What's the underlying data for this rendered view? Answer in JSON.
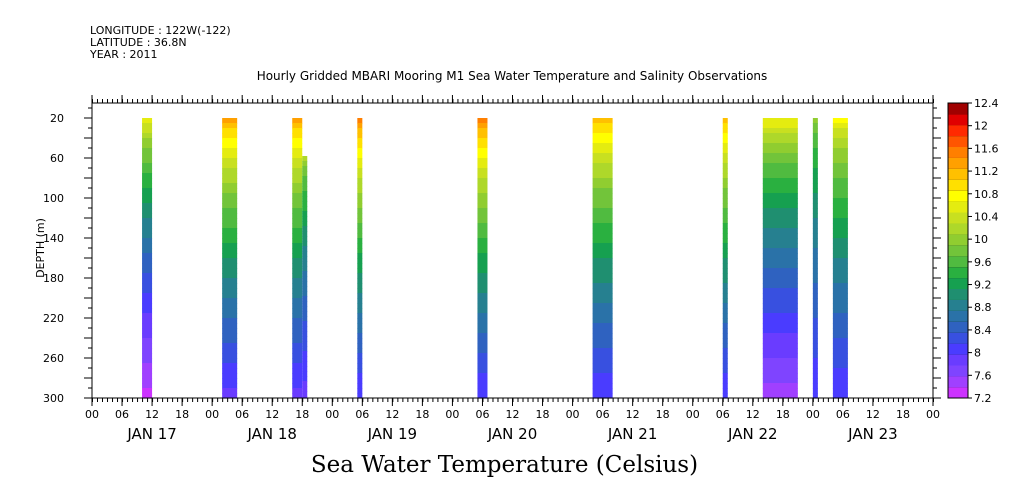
{
  "header": {
    "longitude": "LONGITUDE : 122W(-122)",
    "latitude": "LATITUDE : 36.8N",
    "year": "YEAR : 2011"
  },
  "chart_data": {
    "type": "heatmap",
    "title": "Hourly Gridded MBARI Mooring M1 Sea Water Temperature and Salinity Observations",
    "xlabel": "Sea Water Temperature (Celsius)",
    "ylabel": "DEPTH (m)",
    "ylim": [
      300,
      5
    ],
    "y_ticks": [
      "20",
      "60",
      "100",
      "140",
      "180",
      "220",
      "260",
      "300"
    ],
    "y_tick_values": [
      20,
      60,
      100,
      140,
      180,
      220,
      260,
      300
    ],
    "x_start_hour": 0,
    "x_end_hour": 168,
    "x_hour_ticks": [
      "00",
      "06",
      "12",
      "18",
      "00",
      "06",
      "12",
      "18",
      "00",
      "06",
      "12",
      "18",
      "00",
      "06",
      "12",
      "18",
      "00",
      "06",
      "12",
      "18",
      "00",
      "06",
      "12",
      "18",
      "00",
      "06",
      "12",
      "18",
      "00"
    ],
    "day_labels": [
      "JAN 17",
      "JAN 18",
      "JAN 19",
      "JAN 20",
      "JAN 21",
      "JAN 22",
      "JAN 23"
    ],
    "colorbar": {
      "levels": [
        7.2,
        7.4,
        7.6,
        7.8,
        8.0,
        8.2,
        8.4,
        8.6,
        8.8,
        9.0,
        9.2,
        9.4,
        9.6,
        9.8,
        10.0,
        10.2,
        10.4,
        10.6,
        10.8,
        11.0,
        11.2,
        11.4,
        11.6,
        11.8,
        12.0,
        12.2,
        12.4
      ],
      "labels": [
        "7.2",
        "7.6",
        "8",
        "8.4",
        "8.8",
        "9.2",
        "9.6",
        "10",
        "10.4",
        "10.8",
        "11.2",
        "11.6",
        "12",
        "12.4"
      ],
      "colors": [
        "#cc33ff",
        "#a040ff",
        "#7f44ff",
        "#6a3cff",
        "#4a3cff",
        "#3850e0",
        "#2f62c0",
        "#2a72a8",
        "#268090",
        "#1f8f70",
        "#16a050",
        "#2ab040",
        "#50bb40",
        "#72c43a",
        "#90cd30",
        "#aed82a",
        "#c8e020",
        "#e4ec10",
        "#ffff00",
        "#ffe000",
        "#ffc000",
        "#ffa000",
        "#ff7f00",
        "#ff5500",
        "#ff2a00",
        "#e00000",
        "#a00000"
      ]
    },
    "series": [
      {
        "start_hour": 10.0,
        "end_hour": 12.0,
        "top_depth": 20,
        "surface_temp": 11.0,
        "bottom_temp": 7.3
      },
      {
        "start_hour": 26.0,
        "end_hour": 29.0,
        "top_depth": 20,
        "surface_temp": 11.8,
        "bottom_temp": 7.9
      },
      {
        "start_hour": 40.0,
        "end_hour": 42.0,
        "top_depth": 20,
        "surface_temp": 11.8,
        "bottom_temp": 7.9
      },
      {
        "start_hour": 42.0,
        "end_hour": 43.0,
        "top_depth": 58,
        "surface_temp": 10.4,
        "bottom_temp": 7.9
      },
      {
        "start_hour": 53.0,
        "end_hour": 54.0,
        "top_depth": 20,
        "surface_temp": 12.0,
        "bottom_temp": 8.0
      },
      {
        "start_hour": 77.0,
        "end_hour": 79.0,
        "top_depth": 20,
        "surface_temp": 12.0,
        "bottom_temp": 8.0
      },
      {
        "start_hour": 100.0,
        "end_hour": 104.0,
        "top_depth": 20,
        "surface_temp": 11.6,
        "bottom_temp": 8.0
      },
      {
        "start_hour": 126.0,
        "end_hour": 127.0,
        "top_depth": 20,
        "surface_temp": 11.6,
        "bottom_temp": 8.0
      },
      {
        "start_hour": 134.0,
        "end_hour": 141.0,
        "top_depth": 20,
        "surface_temp": 11.0,
        "bottom_temp": 7.5
      },
      {
        "start_hour": 144.0,
        "end_hour": 145.0,
        "top_depth": 20,
        "surface_temp": 10.2,
        "bottom_temp": 8.0
      },
      {
        "start_hour": 148.0,
        "end_hour": 151.0,
        "top_depth": 20,
        "surface_temp": 11.0,
        "bottom_temp": 8.0
      }
    ]
  }
}
